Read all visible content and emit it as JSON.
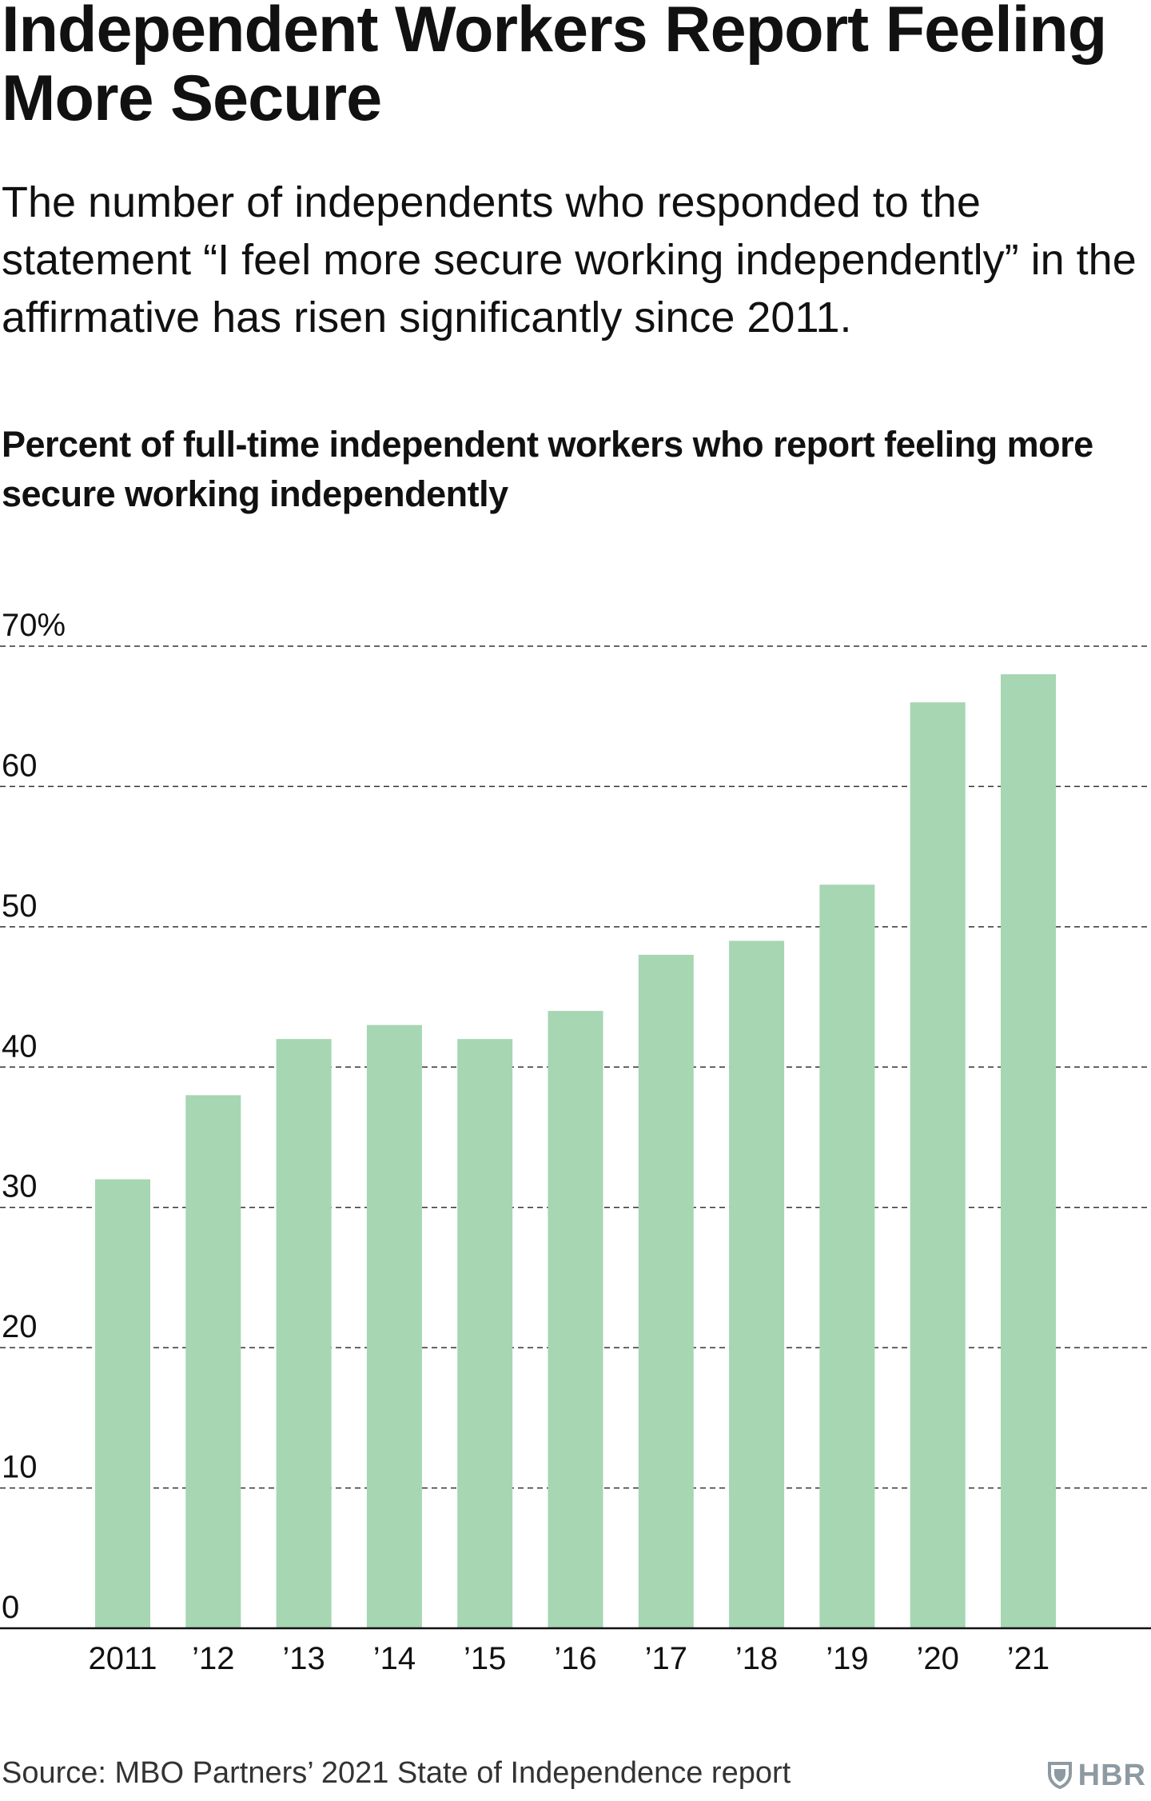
{
  "headline": "Independent Workers Report Feeling More Secure",
  "dek": "The number of independents who responded to the statement “I feel more secure working independently” in the affirmative has risen significantly since 2011.",
  "source": "Source: MBO Partners’ 2021 State of Independence report",
  "logo": {
    "text": "HBR",
    "icon": "shield-icon",
    "color": "#8e9aa2"
  },
  "colors": {
    "bar": "#a6d6b2",
    "text": "#111111",
    "grid": "#333333"
  },
  "chart_data": {
    "type": "bar",
    "title": "Percent of full-time independent workers who report feeling more secure working independently",
    "xlabel": "",
    "ylabel": "",
    "categories": [
      "2011",
      "’12",
      "’13",
      "’14",
      "’15",
      "’16",
      "’17",
      "’18",
      "’19",
      "’20",
      "’21"
    ],
    "values": [
      32,
      38,
      42,
      43,
      42,
      44,
      48,
      49,
      53,
      66,
      68
    ],
    "ylim": [
      0,
      70
    ],
    "yticks": [
      0,
      10,
      20,
      30,
      40,
      50,
      60,
      70
    ],
    "ytick_labels": [
      "0",
      "10",
      "20",
      "30",
      "40",
      "50",
      "60",
      "70%"
    ],
    "grid": true,
    "grid_style": "dashed",
    "legend": "none"
  }
}
